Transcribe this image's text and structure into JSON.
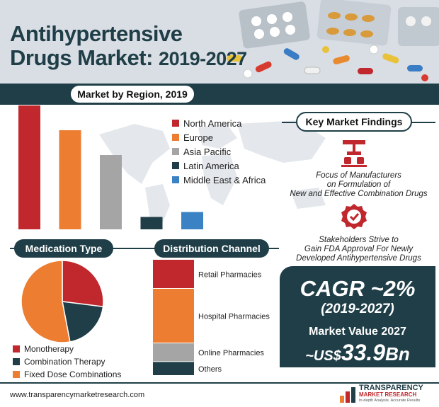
{
  "title_line1": "Antihypertensive",
  "title_line2a": "Drugs Market: ",
  "title_line2b": "2019-2027",
  "region_section_title": "Market by Region, 2019",
  "key_findings_title": "Key Market Findings",
  "finding1": [
    "Focus of Manufacturers",
    "on Formulation of",
    "New and Effective Combination Drugs"
  ],
  "finding2": [
    "Stakeholders Strive to",
    "Gain FDA Approval For Newly",
    "Developed Antihypertensive Drugs"
  ],
  "medication_title": "Medication Type",
  "distribution_title": "Distribution Channel",
  "cagr_label": "CAGR ~2%",
  "cagr_period": "(2019-2027)",
  "market_value_label": "Market Value 2027",
  "market_value_prefix": "~US$",
  "market_value_num": "33.9",
  "market_value_unit": "Bn",
  "website": "www.transparencymarketresearch.com",
  "logo_name": "TRANSPARENCY",
  "logo_sub": "MARKET RESEARCH",
  "logo_tagline": "In-depth Analysis. Accurate Results",
  "colors": {
    "navy": "#1f3e47",
    "red": "#c0282d",
    "orange": "#ed7d31",
    "gray": "#a5a5a5",
    "dark": "#1f3e47",
    "blue": "#3b82c4"
  },
  "chart_data": [
    {
      "type": "bar",
      "title": "Market by Region, 2019",
      "categories": [
        "North America",
        "Europe",
        "Asia Pacific",
        "Latin America",
        "Middle East & Africa"
      ],
      "values": [
        100,
        80,
        60,
        10,
        14
      ],
      "colors": [
        "#c0282d",
        "#ed7d31",
        "#a5a5a5",
        "#1f3e47",
        "#3b82c4"
      ],
      "ylim": [
        0,
        100
      ],
      "legend": "right"
    },
    {
      "type": "pie",
      "title": "Medication Type",
      "labels": [
        "Monotherapy",
        "Combination Therapy",
        "Fixed Dose Combinations"
      ],
      "values": [
        27,
        20,
        53
      ],
      "colors": [
        "#c0282d",
        "#1f3e47",
        "#ed7d31"
      ],
      "legend": "bottom"
    },
    {
      "type": "bar",
      "title": "Distribution Channel",
      "categories": [
        "Retail Pharmacies",
        "Hospital Pharmacies",
        "Online Pharmacies",
        "Others"
      ],
      "values": [
        25,
        47,
        16,
        12
      ],
      "colors": [
        "#c0282d",
        "#ed7d31",
        "#a5a5a5",
        "#1f3e47"
      ]
    }
  ]
}
